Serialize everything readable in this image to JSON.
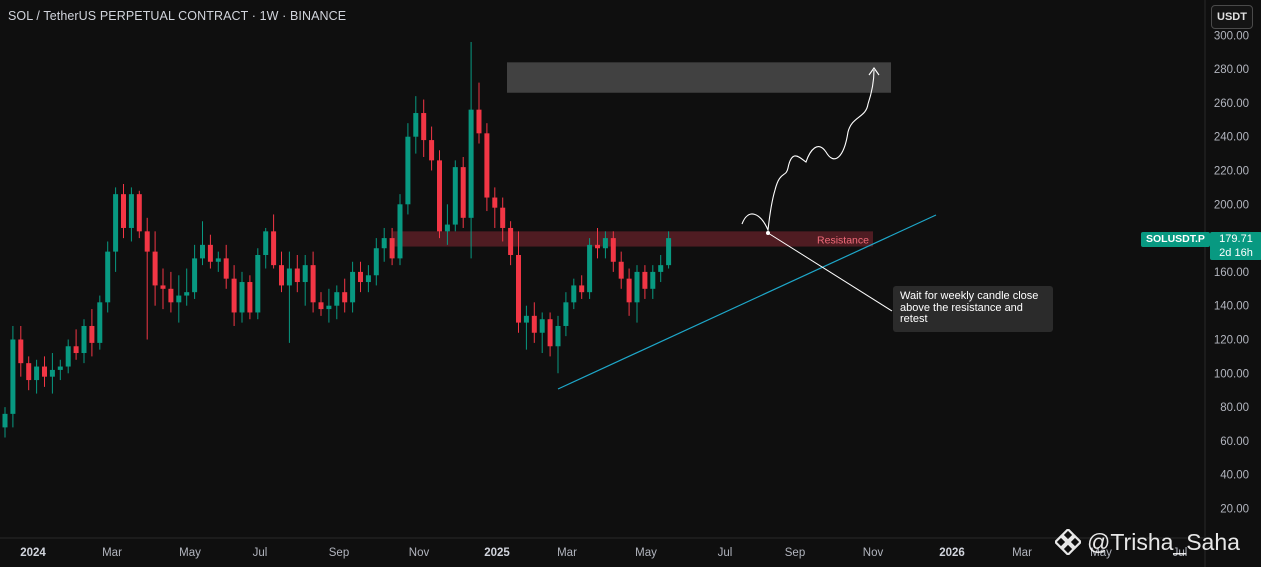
{
  "header": {
    "title": "SOL / TetherUS PERPETUAL CONTRACT · 1W · BINANCE",
    "unit_button": "USDT"
  },
  "price_tag": {
    "symbol": "SOLUSDT.P",
    "price": "179.71",
    "countdown": "2d 16h"
  },
  "annotation": {
    "callout": "Wait for weekly candle close above the resistance and retest",
    "resistance_label": "Resistance"
  },
  "watermark": {
    "text": "@Trisha_Saha",
    "logo_icon": "binance-logo-icon"
  },
  "colors": {
    "up": "#089981",
    "down": "#f23645",
    "trendline": "#1ea7c9",
    "background": "#0f0f0f"
  },
  "chart_data": {
    "type": "candlestick",
    "interval": "1W",
    "x_ticks": [
      "2024",
      "Mar",
      "May",
      "Jul",
      "Sep",
      "Nov",
      "2025",
      "Mar",
      "May",
      "Jul",
      "Sep",
      "Nov",
      "2026",
      "Mar",
      "May",
      "Jul"
    ],
    "y_ticks": [
      20,
      40,
      60,
      80,
      100,
      120,
      140,
      160,
      180,
      200,
      220,
      240,
      260,
      280,
      300
    ],
    "ylim": [
      10,
      305
    ],
    "grid": false,
    "candles": [
      {
        "o": 68,
        "h": 80,
        "l": 62,
        "c": 76
      },
      {
        "o": 76,
        "h": 128,
        "l": 68,
        "c": 120
      },
      {
        "o": 120,
        "h": 128,
        "l": 98,
        "c": 106
      },
      {
        "o": 106,
        "h": 110,
        "l": 90,
        "c": 96
      },
      {
        "o": 96,
        "h": 108,
        "l": 88,
        "c": 104
      },
      {
        "o": 104,
        "h": 110,
        "l": 92,
        "c": 98
      },
      {
        "o": 98,
        "h": 112,
        "l": 88,
        "c": 102
      },
      {
        "o": 102,
        "h": 108,
        "l": 96,
        "c": 104
      },
      {
        "o": 104,
        "h": 120,
        "l": 100,
        "c": 116
      },
      {
        "o": 116,
        "h": 126,
        "l": 108,
        "c": 112
      },
      {
        "o": 112,
        "h": 132,
        "l": 106,
        "c": 128
      },
      {
        "o": 128,
        "h": 138,
        "l": 110,
        "c": 118
      },
      {
        "o": 118,
        "h": 146,
        "l": 114,
        "c": 142
      },
      {
        "o": 142,
        "h": 178,
        "l": 136,
        "c": 172
      },
      {
        "o": 172,
        "h": 210,
        "l": 160,
        "c": 206
      },
      {
        "o": 206,
        "h": 212,
        "l": 180,
        "c": 186
      },
      {
        "o": 186,
        "h": 210,
        "l": 178,
        "c": 206
      },
      {
        "o": 206,
        "h": 208,
        "l": 180,
        "c": 184
      },
      {
        "o": 184,
        "h": 192,
        "l": 120,
        "c": 172
      },
      {
        "o": 172,
        "h": 184,
        "l": 140,
        "c": 152
      },
      {
        "o": 152,
        "h": 162,
        "l": 138,
        "c": 150
      },
      {
        "o": 150,
        "h": 160,
        "l": 136,
        "c": 142
      },
      {
        "o": 142,
        "h": 158,
        "l": 130,
        "c": 146
      },
      {
        "o": 146,
        "h": 162,
        "l": 140,
        "c": 148
      },
      {
        "o": 148,
        "h": 176,
        "l": 144,
        "c": 168
      },
      {
        "o": 168,
        "h": 190,
        "l": 164,
        "c": 176
      },
      {
        "o": 176,
        "h": 182,
        "l": 162,
        "c": 166
      },
      {
        "o": 166,
        "h": 172,
        "l": 160,
        "c": 168
      },
      {
        "o": 168,
        "h": 176,
        "l": 150,
        "c": 156
      },
      {
        "o": 156,
        "h": 164,
        "l": 128,
        "c": 136
      },
      {
        "o": 136,
        "h": 160,
        "l": 130,
        "c": 154
      },
      {
        "o": 154,
        "h": 158,
        "l": 132,
        "c": 136
      },
      {
        "o": 136,
        "h": 174,
        "l": 132,
        "c": 170
      },
      {
        "o": 170,
        "h": 186,
        "l": 162,
        "c": 184
      },
      {
        "o": 184,
        "h": 194,
        "l": 162,
        "c": 164
      },
      {
        "o": 164,
        "h": 172,
        "l": 148,
        "c": 152
      },
      {
        "o": 152,
        "h": 172,
        "l": 118,
        "c": 162
      },
      {
        "o": 162,
        "h": 170,
        "l": 148,
        "c": 154
      },
      {
        "o": 154,
        "h": 170,
        "l": 140,
        "c": 164
      },
      {
        "o": 164,
        "h": 172,
        "l": 136,
        "c": 142
      },
      {
        "o": 142,
        "h": 148,
        "l": 134,
        "c": 138
      },
      {
        "o": 138,
        "h": 150,
        "l": 130,
        "c": 140
      },
      {
        "o": 140,
        "h": 152,
        "l": 132,
        "c": 148
      },
      {
        "o": 148,
        "h": 156,
        "l": 136,
        "c": 142
      },
      {
        "o": 142,
        "h": 166,
        "l": 136,
        "c": 160
      },
      {
        "o": 160,
        "h": 166,
        "l": 148,
        "c": 154
      },
      {
        "o": 154,
        "h": 164,
        "l": 148,
        "c": 158
      },
      {
        "o": 158,
        "h": 180,
        "l": 152,
        "c": 174
      },
      {
        "o": 174,
        "h": 186,
        "l": 166,
        "c": 180
      },
      {
        "o": 180,
        "h": 186,
        "l": 164,
        "c": 168
      },
      {
        "o": 168,
        "h": 206,
        "l": 164,
        "c": 200
      },
      {
        "o": 200,
        "h": 248,
        "l": 194,
        "c": 240
      },
      {
        "o": 240,
        "h": 264,
        "l": 230,
        "c": 254
      },
      {
        "o": 254,
        "h": 262,
        "l": 228,
        "c": 238
      },
      {
        "o": 238,
        "h": 246,
        "l": 220,
        "c": 226
      },
      {
        "o": 226,
        "h": 232,
        "l": 180,
        "c": 184
      },
      {
        "o": 184,
        "h": 200,
        "l": 176,
        "c": 188
      },
      {
        "o": 188,
        "h": 226,
        "l": 184,
        "c": 222
      },
      {
        "o": 222,
        "h": 228,
        "l": 186,
        "c": 192
      },
      {
        "o": 192,
        "h": 296,
        "l": 168,
        "c": 256
      },
      {
        "o": 256,
        "h": 272,
        "l": 236,
        "c": 242
      },
      {
        "o": 242,
        "h": 248,
        "l": 196,
        "c": 204
      },
      {
        "o": 204,
        "h": 210,
        "l": 186,
        "c": 198
      },
      {
        "o": 198,
        "h": 204,
        "l": 178,
        "c": 186
      },
      {
        "o": 186,
        "h": 190,
        "l": 164,
        "c": 170
      },
      {
        "o": 170,
        "h": 184,
        "l": 124,
        "c": 130
      },
      {
        "o": 130,
        "h": 140,
        "l": 114,
        "c": 134
      },
      {
        "o": 134,
        "h": 142,
        "l": 118,
        "c": 124
      },
      {
        "o": 124,
        "h": 136,
        "l": 112,
        "c": 132
      },
      {
        "o": 132,
        "h": 136,
        "l": 110,
        "c": 116
      },
      {
        "o": 116,
        "h": 134,
        "l": 100,
        "c": 128
      },
      {
        "o": 128,
        "h": 148,
        "l": 122,
        "c": 142
      },
      {
        "o": 142,
        "h": 156,
        "l": 138,
        "c": 152
      },
      {
        "o": 152,
        "h": 158,
        "l": 144,
        "c": 148
      },
      {
        "o": 148,
        "h": 180,
        "l": 144,
        "c": 176
      },
      {
        "o": 176,
        "h": 186,
        "l": 168,
        "c": 174
      },
      {
        "o": 174,
        "h": 184,
        "l": 168,
        "c": 180
      },
      {
        "o": 180,
        "h": 184,
        "l": 160,
        "c": 166
      },
      {
        "o": 166,
        "h": 172,
        "l": 150,
        "c": 156
      },
      {
        "o": 156,
        "h": 162,
        "l": 134,
        "c": 142
      },
      {
        "o": 142,
        "h": 164,
        "l": 130,
        "c": 160
      },
      {
        "o": 160,
        "h": 164,
        "l": 144,
        "c": 150
      },
      {
        "o": 150,
        "h": 164,
        "l": 144,
        "c": 160
      },
      {
        "o": 160,
        "h": 170,
        "l": 154,
        "c": 164
      },
      {
        "o": 164,
        "h": 184,
        "l": 162,
        "c": 180
      }
    ],
    "zones": [
      {
        "label": "Resistance",
        "from": 175,
        "to": 184
      },
      {
        "label": "",
        "from": 266,
        "to": 284
      }
    ],
    "current_price": 179.71
  }
}
